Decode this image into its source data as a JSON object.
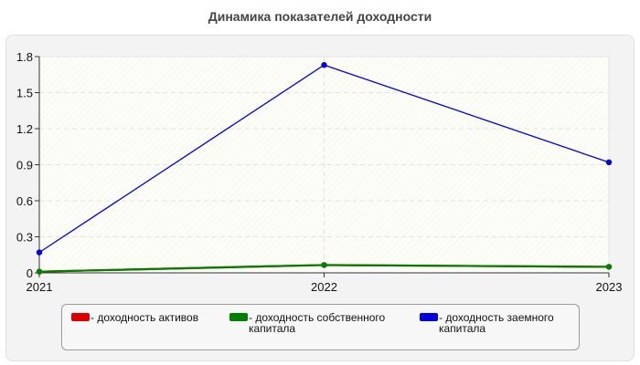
{
  "chart_data": {
    "type": "line",
    "title": "Динамика показателей доходности",
    "xlabel": "",
    "ylabel": "",
    "categories": [
      "2021",
      "2022",
      "2023"
    ],
    "ylim": [
      0,
      1.8
    ],
    "yticks": [
      "0",
      "0.3",
      "0.6",
      "0.9",
      "1.2",
      "1.5",
      "1.8"
    ],
    "grid": true,
    "legend_position": "bottom",
    "series": [
      {
        "name": "- доходность активов",
        "color": "#dd0000",
        "values": [
          0.01,
          0.065,
          0.05
        ]
      },
      {
        "name": "- доходность собственного капитала",
        "color": "#008000",
        "values": [
          0.01,
          0.065,
          0.05
        ]
      },
      {
        "name": "- доходность заемного капитала",
        "color": "#0000dd",
        "values": [
          0.17,
          1.73,
          0.92
        ]
      }
    ]
  }
}
